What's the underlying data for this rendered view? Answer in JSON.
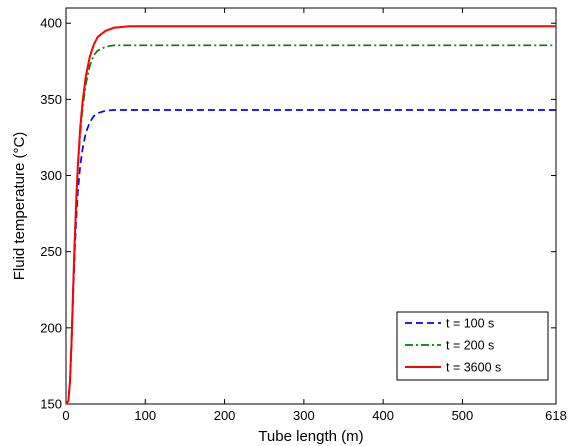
{
  "chart_data": {
    "type": "line",
    "xlabel": "Tube length (m)",
    "ylabel": "Fluid temperature (°C)",
    "xlim": [
      0,
      618
    ],
    "ylim": [
      150,
      410
    ],
    "xticks": [
      0,
      100,
      200,
      300,
      400,
      500,
      618
    ],
    "yticks": [
      150,
      200,
      250,
      300,
      350,
      400
    ],
    "legend_position": "bottom-right",
    "grid": false,
    "series": [
      {
        "name": "t = 100 s",
        "color": "#0000ff",
        "line_style": "dashed",
        "x": [
          0,
          3,
          5,
          7,
          9,
          11,
          13,
          15,
          18,
          21,
          25,
          30,
          35,
          40,
          50,
          60,
          618
        ],
        "y": [
          150,
          152,
          165,
          190,
          220,
          250,
          272,
          290,
          307,
          318,
          328,
          335,
          339,
          341,
          342.5,
          343,
          343
        ]
      },
      {
        "name": "t = 200 s",
        "color": "#008000",
        "line_style": "dash-dot",
        "x": [
          0,
          3,
          5,
          7,
          9,
          11,
          13,
          15,
          18,
          21,
          25,
          30,
          35,
          40,
          50,
          60,
          618
        ],
        "y": [
          150,
          152,
          165,
          193,
          225,
          256,
          283,
          305,
          328,
          345,
          360,
          372,
          379,
          382,
          384.5,
          385.5,
          385.5
        ]
      },
      {
        "name": "t = 3600 s",
        "color": "#ff0000",
        "line_style": "solid",
        "x": [
          0,
          3,
          5,
          7,
          9,
          11,
          13,
          15,
          18,
          21,
          25,
          30,
          35,
          40,
          50,
          60,
          70,
          80,
          100,
          618
        ],
        "y": [
          150,
          152,
          165,
          192,
          225,
          257,
          285,
          307,
          332,
          349,
          365,
          378,
          386,
          391,
          395,
          397,
          397.5,
          398,
          398,
          398
        ]
      }
    ]
  }
}
